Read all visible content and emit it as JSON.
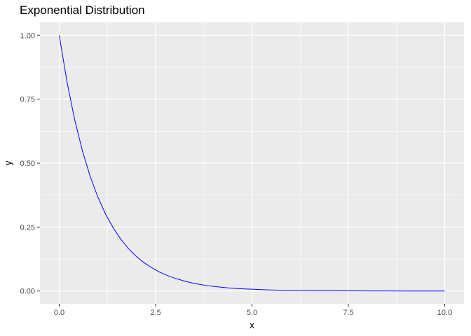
{
  "chart_data": {
    "type": "line",
    "title": "Exponential Distribution",
    "xlabel": "x",
    "ylabel": "y",
    "xlim": [
      -0.5,
      10.5
    ],
    "ylim": [
      -0.05,
      1.05
    ],
    "x_ticks": [
      0.0,
      2.5,
      5.0,
      7.5,
      10.0
    ],
    "x_tick_labels": [
      "0.0",
      "2.5",
      "5.0",
      "7.5",
      "10.0"
    ],
    "y_ticks": [
      0.0,
      0.25,
      0.5,
      0.75,
      1.0
    ],
    "y_tick_labels": [
      "0.00",
      "0.25",
      "0.50",
      "0.75",
      "1.00"
    ],
    "grid": true,
    "legend": "none",
    "colors": {
      "panel": "#ebebeb",
      "grid": "#ffffff",
      "line": "#0000ff"
    },
    "series": [
      {
        "x": [
          0,
          0.2,
          0.4,
          0.6,
          0.8,
          1.0,
          1.2,
          1.4,
          1.6,
          1.8,
          2.0,
          2.2,
          2.4,
          2.6,
          2.8,
          3.0,
          3.2,
          3.4,
          3.6,
          3.8,
          4.0,
          4.2,
          4.4,
          4.6,
          4.8,
          5.0,
          5.5,
          6.0,
          6.5,
          7.0,
          7.5,
          8.0,
          8.5,
          9.0,
          9.5,
          10.0
        ],
        "values": [
          1.0,
          0.819,
          0.67,
          0.549,
          0.449,
          0.368,
          0.301,
          0.247,
          0.202,
          0.165,
          0.135,
          0.111,
          0.091,
          0.074,
          0.061,
          0.05,
          0.041,
          0.033,
          0.027,
          0.022,
          0.018,
          0.015,
          0.012,
          0.01,
          0.008,
          0.007,
          0.004,
          0.002,
          0.0015,
          0.0009,
          0.0006,
          0.0003,
          0.0002,
          0.0001,
          0.0001,
          0.0
        ]
      }
    ]
  }
}
